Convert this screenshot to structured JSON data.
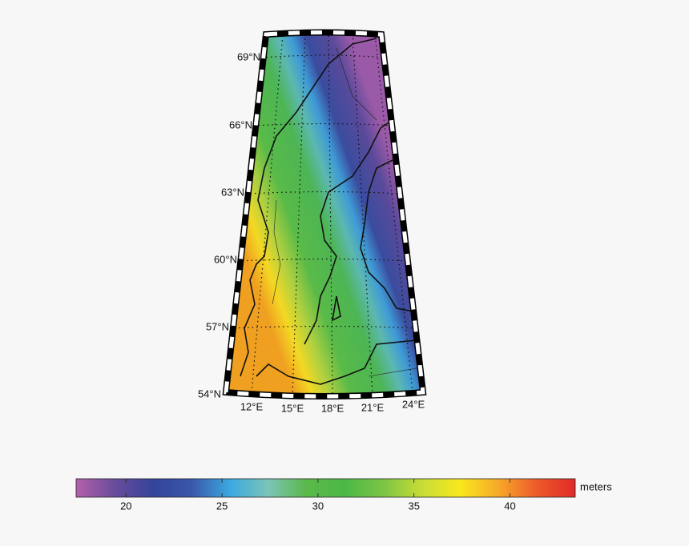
{
  "map": {
    "lat_labels": [
      "69°N",
      "66°N",
      "63°N",
      "60°N",
      "57°N",
      "54°N"
    ],
    "lon_labels": [
      "12°E",
      "15°E",
      "18°E",
      "21°E",
      "24°E"
    ]
  },
  "colorbar": {
    "label": "meters",
    "range": [
      17.4,
      43.4
    ],
    "ticks": [
      20,
      25,
      30,
      35,
      40
    ],
    "colors": [
      "#b560a8",
      "#6a4c9c",
      "#34449a",
      "#3a56a8",
      "#3aa8e0",
      "#7cc4b8",
      "#5ab848",
      "#4cb848",
      "#7cc444",
      "#c8dc38",
      "#f8e81c",
      "#f7a829",
      "#ee5a2a",
      "#e02a2a"
    ]
  }
}
